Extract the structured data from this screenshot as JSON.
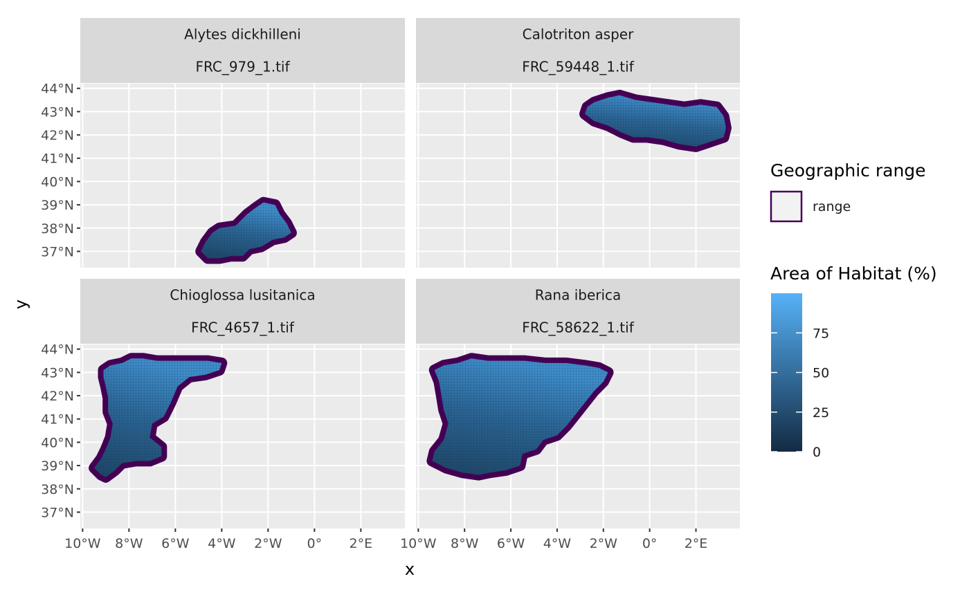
{
  "chart_data": {
    "type": "map",
    "x_axis": {
      "title": "x",
      "ticks": [
        {
          "value": -10,
          "label": "10°W"
        },
        {
          "value": -8,
          "label": "8°W"
        },
        {
          "value": -6,
          "label": "6°W"
        },
        {
          "value": -4,
          "label": "4°W"
        },
        {
          "value": -2,
          "label": "2°W"
        },
        {
          "value": 0,
          "label": "0°"
        },
        {
          "value": 2,
          "label": "2°E"
        }
      ],
      "range": [
        -10.1,
        3.9
      ]
    },
    "y_axis": {
      "title": "y",
      "ticks": [
        {
          "value": 37,
          "label": "37°N"
        },
        {
          "value": 38,
          "label": "38°N"
        },
        {
          "value": 39,
          "label": "39°N"
        },
        {
          "value": 40,
          "label": "40°N"
        },
        {
          "value": 41,
          "label": "41°N"
        },
        {
          "value": 42,
          "label": "42°N"
        },
        {
          "value": 43,
          "label": "43°N"
        },
        {
          "value": 44,
          "label": "44°N"
        }
      ]
    },
    "panels": [
      {
        "species": "Alytes dickhilleni",
        "file": "FRC_979_1.tif",
        "y_range": [
          36.3,
          44.2
        ],
        "range_outline": [
          [
            -4.9,
            37.0
          ],
          [
            -4.7,
            37.4
          ],
          [
            -4.4,
            37.8
          ],
          [
            -4.1,
            38.0
          ],
          [
            -3.4,
            38.1
          ],
          [
            -2.9,
            38.6
          ],
          [
            -2.5,
            38.9
          ],
          [
            -2.2,
            39.1
          ],
          [
            -1.7,
            39.0
          ],
          [
            -1.5,
            38.6
          ],
          [
            -1.2,
            38.2
          ],
          [
            -1.0,
            37.8
          ],
          [
            -1.3,
            37.6
          ],
          [
            -1.8,
            37.5
          ],
          [
            -2.3,
            37.2
          ],
          [
            -2.8,
            37.1
          ],
          [
            -3.1,
            36.8
          ],
          [
            -3.6,
            36.8
          ],
          [
            -4.1,
            36.7
          ],
          [
            -4.6,
            36.7
          ]
        ]
      },
      {
        "species": "Calotriton asper",
        "file": "FRC_59448_1.tif",
        "y_range": [
          36.3,
          44.2
        ],
        "range_outline": [
          [
            -2.7,
            43.2
          ],
          [
            -2.4,
            43.4
          ],
          [
            -1.8,
            43.6
          ],
          [
            -1.3,
            43.7
          ],
          [
            -0.6,
            43.5
          ],
          [
            0.1,
            43.4
          ],
          [
            0.8,
            43.3
          ],
          [
            1.5,
            43.2
          ],
          [
            2.2,
            43.3
          ],
          [
            2.9,
            43.2
          ],
          [
            3.2,
            42.8
          ],
          [
            3.3,
            42.3
          ],
          [
            3.2,
            41.9
          ],
          [
            2.6,
            41.7
          ],
          [
            2.0,
            41.5
          ],
          [
            1.3,
            41.6
          ],
          [
            0.6,
            41.8
          ],
          [
            -0.1,
            41.9
          ],
          [
            -0.7,
            41.9
          ],
          [
            -1.2,
            42.1
          ],
          [
            -1.8,
            42.4
          ],
          [
            -2.4,
            42.6
          ],
          [
            -2.8,
            42.9
          ]
        ]
      },
      {
        "species": "Chioglossa lusitanica",
        "file": "FRC_4657_1.tif",
        "y_range": [
          36.3,
          44.2
        ],
        "range_outline": [
          [
            -9.1,
            43.1
          ],
          [
            -8.8,
            43.3
          ],
          [
            -8.3,
            43.4
          ],
          [
            -7.9,
            43.6
          ],
          [
            -7.4,
            43.6
          ],
          [
            -6.8,
            43.5
          ],
          [
            -6.0,
            43.5
          ],
          [
            -5.3,
            43.5
          ],
          [
            -4.6,
            43.5
          ],
          [
            -4.0,
            43.4
          ],
          [
            -4.1,
            43.1
          ],
          [
            -4.7,
            42.9
          ],
          [
            -5.4,
            42.8
          ],
          [
            -5.9,
            42.4
          ],
          [
            -6.2,
            41.7
          ],
          [
            -6.5,
            41.1
          ],
          [
            -7.0,
            40.8
          ],
          [
            -7.1,
            40.2
          ],
          [
            -6.6,
            39.8
          ],
          [
            -6.6,
            39.4
          ],
          [
            -7.1,
            39.2
          ],
          [
            -7.7,
            39.2
          ],
          [
            -8.3,
            39.1
          ],
          [
            -8.6,
            38.8
          ],
          [
            -9.0,
            38.5
          ],
          [
            -9.2,
            38.6
          ],
          [
            -9.5,
            38.9
          ],
          [
            -9.2,
            39.3
          ],
          [
            -9.0,
            39.7
          ],
          [
            -8.8,
            40.2
          ],
          [
            -8.7,
            40.8
          ],
          [
            -8.9,
            41.3
          ],
          [
            -8.9,
            41.9
          ],
          [
            -9.0,
            42.4
          ],
          [
            -9.1,
            42.8
          ]
        ]
      },
      {
        "species": "Rana iberica",
        "file": "FRC_58622_1.tif",
        "y_range": [
          36.3,
          44.2
        ],
        "range_outline": [
          [
            -9.3,
            43.1
          ],
          [
            -8.9,
            43.3
          ],
          [
            -8.3,
            43.4
          ],
          [
            -7.7,
            43.6
          ],
          [
            -7.0,
            43.5
          ],
          [
            -6.2,
            43.5
          ],
          [
            -5.4,
            43.5
          ],
          [
            -4.5,
            43.4
          ],
          [
            -3.6,
            43.4
          ],
          [
            -2.8,
            43.3
          ],
          [
            -2.2,
            43.2
          ],
          [
            -1.8,
            43.0
          ],
          [
            -2.0,
            42.6
          ],
          [
            -2.4,
            42.2
          ],
          [
            -2.8,
            41.7
          ],
          [
            -3.2,
            41.2
          ],
          [
            -3.6,
            40.7
          ],
          [
            -4.0,
            40.3
          ],
          [
            -4.6,
            40.1
          ],
          [
            -4.9,
            39.7
          ],
          [
            -5.5,
            39.5
          ],
          [
            -5.6,
            39.0
          ],
          [
            -6.2,
            38.8
          ],
          [
            -6.9,
            38.7
          ],
          [
            -7.4,
            38.6
          ],
          [
            -8.1,
            38.7
          ],
          [
            -8.8,
            38.9
          ],
          [
            -9.4,
            39.2
          ],
          [
            -9.3,
            39.6
          ],
          [
            -8.9,
            40.1
          ],
          [
            -8.7,
            40.8
          ],
          [
            -8.9,
            41.4
          ],
          [
            -9.0,
            42.0
          ],
          [
            -9.1,
            42.6
          ]
        ]
      }
    ],
    "legends": {
      "geographic_range": {
        "title": "Geographic range",
        "label": "range",
        "color": "#440154"
      },
      "area_of_habitat": {
        "title": "Area of Habitat (%)",
        "ticks": [
          0,
          25,
          50,
          75
        ],
        "range": [
          0,
          100
        ],
        "colors": [
          "#132B43",
          "#56B1F7"
        ]
      }
    }
  },
  "colors": {
    "panel_background": "#EBEBEB",
    "grid": "#FFFFFF",
    "strip_background": "#D9D9D9",
    "range_outline": "#440154",
    "habitat_low": "#132B43",
    "habitat_high": "#56B1F7"
  }
}
